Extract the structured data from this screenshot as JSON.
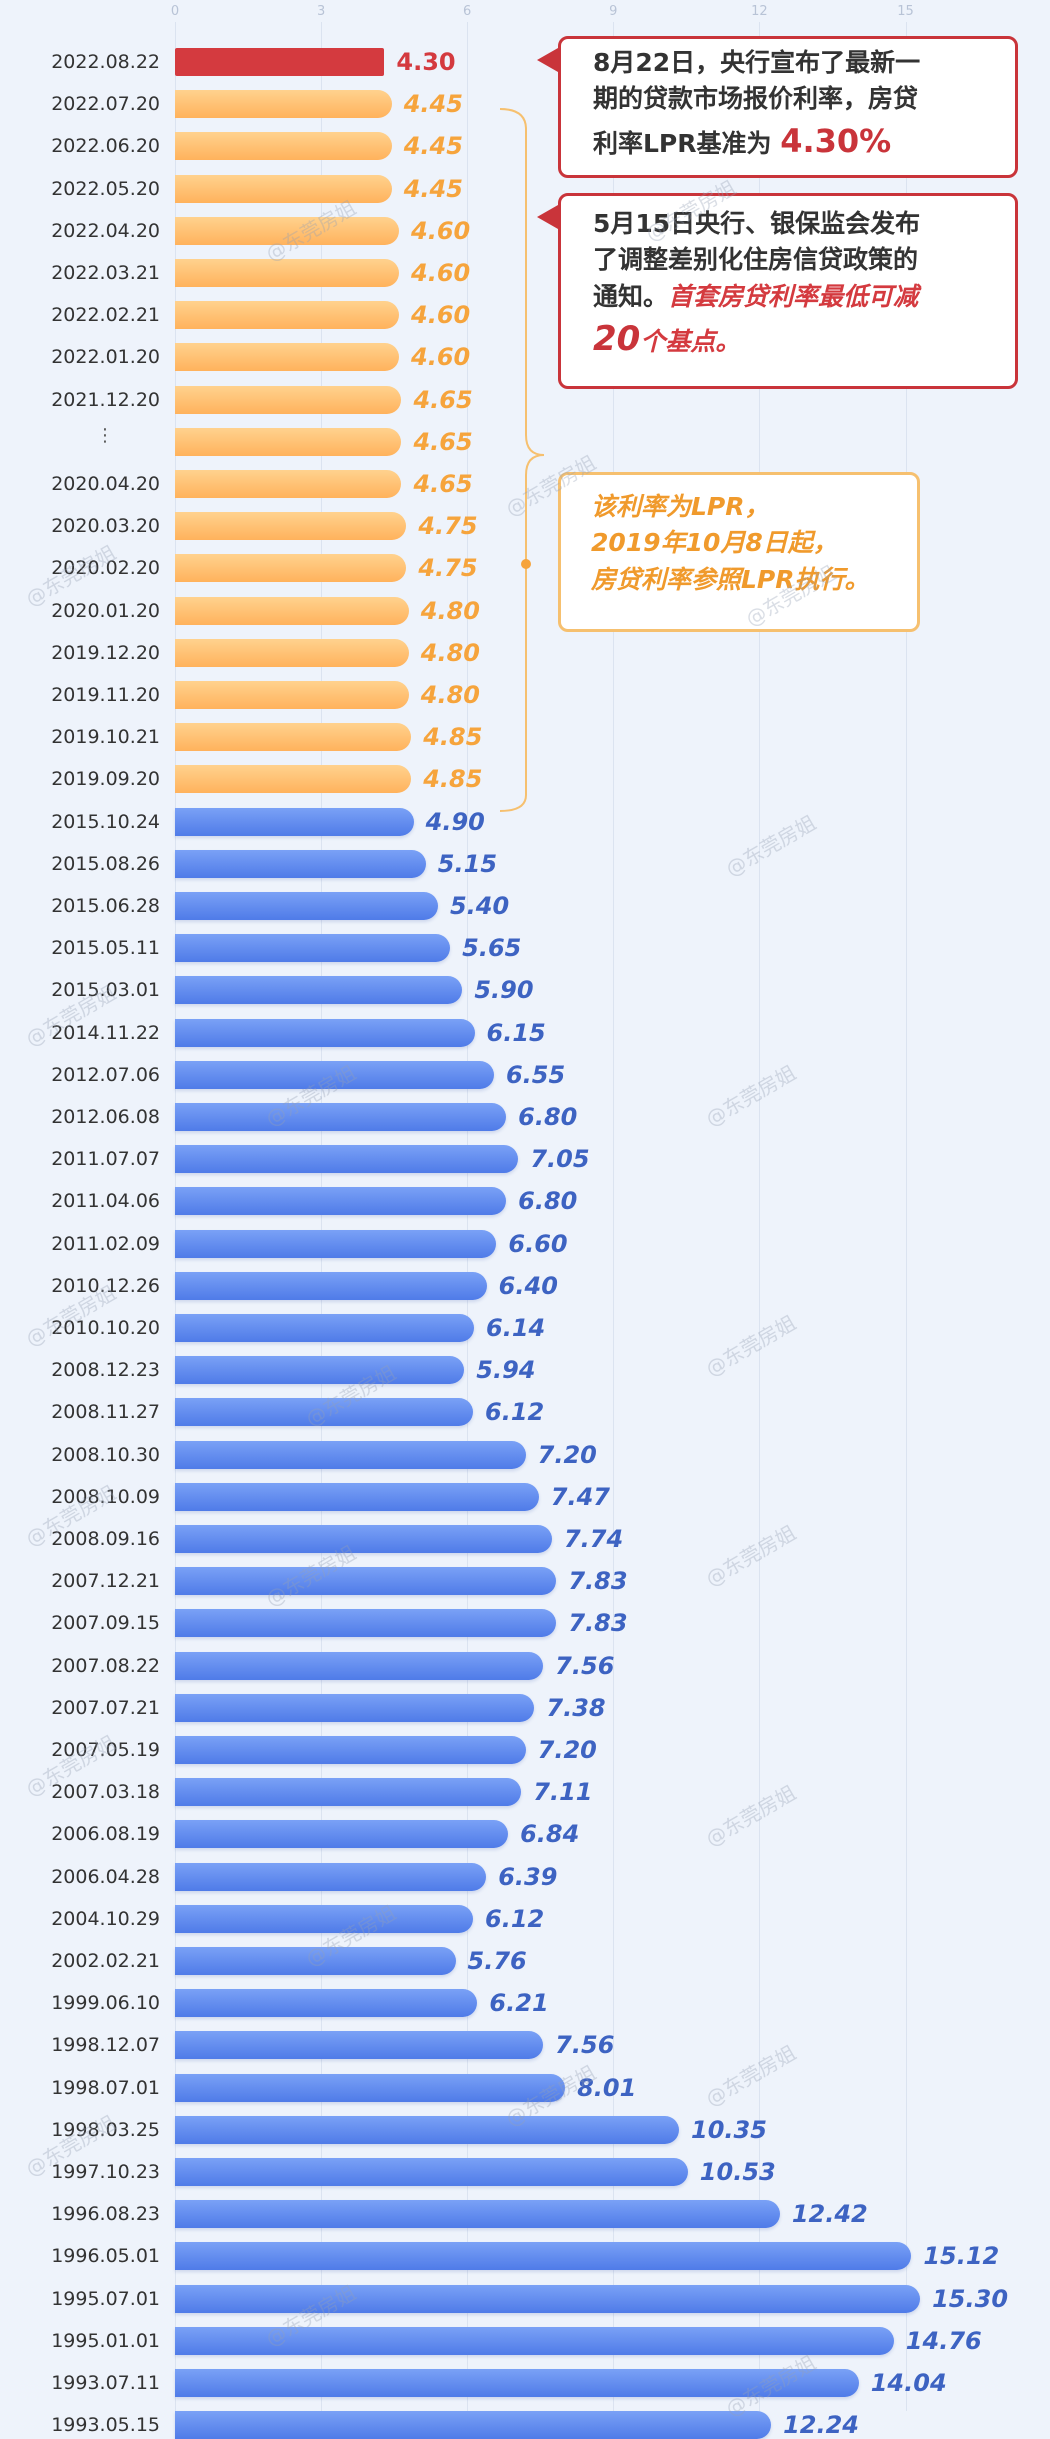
{
  "chart_data": {
    "type": "bar",
    "orientation": "horizontal",
    "x_ticks": [
      "0",
      "3",
      "6",
      "9",
      "12",
      "15"
    ],
    "xlim": [
      0,
      18
    ],
    "categories": [
      "2022.08.22",
      "2022.07.20",
      "2022.06.20",
      "2022.05.20",
      "2022.04.20",
      "2022.03.21",
      "2022.02.21",
      "2022.01.20",
      "2021.12.20",
      "…",
      "2020.04.20",
      "2020.03.20",
      "2020.02.20",
      "2020.01.20",
      "2019.12.20",
      "2019.11.20",
      "2019.10.21",
      "2019.09.20",
      "2015.10.24",
      "2015.08.26",
      "2015.06.28",
      "2015.05.11",
      "2015.03.01",
      "2014.11.22",
      "2012.07.06",
      "2012.06.08",
      "2011.07.07",
      "2011.04.06",
      "2011.02.09",
      "2010.12.26",
      "2010.10.20",
      "2008.12.23",
      "2008.11.27",
      "2008.10.30",
      "2008.10.09",
      "2008.09.16",
      "2007.12.21",
      "2007.09.15",
      "2007.08.22",
      "2007.07.21",
      "2007.05.19",
      "2007.03.18",
      "2006.08.19",
      "2006.04.28",
      "2004.10.29",
      "2002.02.21",
      "1999.06.10",
      "1998.12.07",
      "1998.07.01",
      "1998.03.25",
      "1997.10.23",
      "1996.08.23",
      "1996.05.01",
      "1995.07.01",
      "1995.01.01",
      "1993.07.11",
      "1993.05.15"
    ],
    "values": [
      4.3,
      4.45,
      4.45,
      4.45,
      4.6,
      4.6,
      4.6,
      4.6,
      4.65,
      4.65,
      4.65,
      4.75,
      4.75,
      4.8,
      4.8,
      4.8,
      4.85,
      4.85,
      4.9,
      5.15,
      5.4,
      5.65,
      5.9,
      6.15,
      6.55,
      6.8,
      7.05,
      6.8,
      6.6,
      6.4,
      6.14,
      5.94,
      6.12,
      7.2,
      7.47,
      7.74,
      7.83,
      7.83,
      7.56,
      7.38,
      7.2,
      7.11,
      6.84,
      6.39,
      6.12,
      5.76,
      6.21,
      7.56,
      8.01,
      10.35,
      10.53,
      12.42,
      15.12,
      15.3,
      14.76,
      14.04,
      12.24
    ],
    "value_labels": [
      "4.30",
      "4.45",
      "4.45",
      "4.45",
      "4.60",
      "4.60",
      "4.60",
      "4.60",
      "4.65",
      "4.65",
      "4.65",
      "4.75",
      "4.75",
      "4.80",
      "4.80",
      "4.80",
      "4.85",
      "4.85",
      "4.90",
      "5.15",
      "5.40",
      "5.65",
      "5.90",
      "6.15",
      "6.55",
      "6.80",
      "7.05",
      "6.80",
      "6.60",
      "6.40",
      "6.14",
      "5.94",
      "6.12",
      "7.20",
      "7.47",
      "7.74",
      "7.83",
      "7.83",
      "7.56",
      "7.38",
      "7.20",
      "7.11",
      "6.84",
      "6.39",
      "6.12",
      "5.76",
      "6.21",
      "7.56",
      "8.01",
      "10.35",
      "10.53",
      "12.42",
      "15.12",
      "15.30",
      "14.76",
      "14.04",
      "12.24"
    ],
    "series_colors": {
      "latest": "#d43a3f",
      "lpr": "#ffb25c",
      "benchmark": "#5b85ee"
    },
    "series_groups": [
      "latest",
      "lpr",
      "lpr",
      "lpr",
      "lpr",
      "lpr",
      "lpr",
      "lpr",
      "lpr",
      "lpr",
      "lpr",
      "lpr",
      "lpr",
      "lpr",
      "lpr",
      "lpr",
      "lpr",
      "lpr",
      "benchmark",
      "benchmark",
      "benchmark",
      "benchmark",
      "benchmark",
      "benchmark",
      "benchmark",
      "benchmark",
      "benchmark",
      "benchmark",
      "benchmark",
      "benchmark",
      "benchmark",
      "benchmark",
      "benchmark",
      "benchmark",
      "benchmark",
      "benchmark",
      "benchmark",
      "benchmark",
      "benchmark",
      "benchmark",
      "benchmark",
      "benchmark",
      "benchmark",
      "benchmark",
      "benchmark",
      "benchmark",
      "benchmark",
      "benchmark",
      "benchmark",
      "benchmark",
      "benchmark",
      "benchmark",
      "benchmark",
      "benchmark",
      "benchmark",
      "benchmark",
      "benchmark"
    ]
  },
  "callouts": {
    "aug22": {
      "line1": "8月22日，央行宣布了最新一",
      "line2": "期的贷款市场报价利率，房贷",
      "line3_prefix": "利率LPR基准为 ",
      "line3_highlight": "4.30%"
    },
    "may15": {
      "line1": "5月15日央行、银保监会发布",
      "line2": "了调整差别化住房信贷政策的",
      "line3_prefix": "通知。",
      "line3_highlight": "首套房贷利率最低可减",
      "line4_highlight": "20",
      "line4_suffix": "个基点。"
    },
    "lpr": {
      "line1": "该利率为LPR，",
      "line2": "2019年10月8日起，",
      "line3": "房贷利率参照LPR执行。"
    }
  },
  "watermark": "@东莞房姐"
}
